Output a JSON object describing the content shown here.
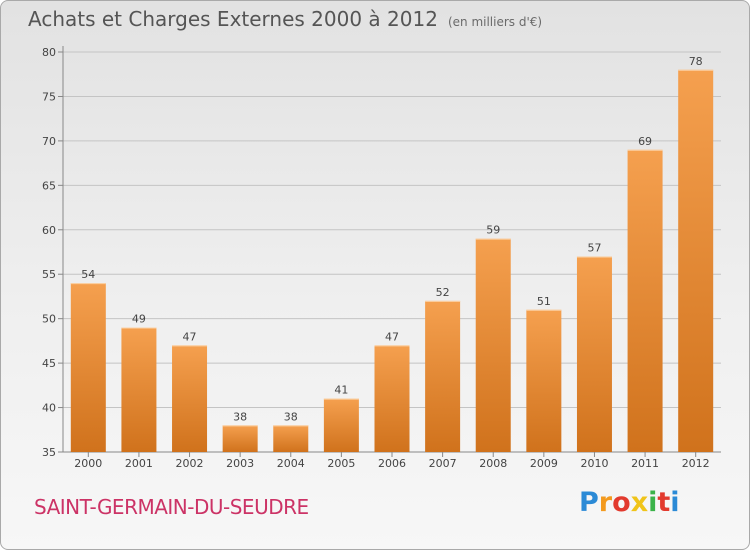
{
  "title": "Achats et Charges Externes 2000 à 2012",
  "unit": "(en milliers d'€)",
  "location": "SAINT-GERMAIN-DU-SEUDRE",
  "logo": {
    "text": "Proxiti",
    "colors": [
      "#2b8ad6",
      "#f39a1e",
      "#e23a2e",
      "#f0c419",
      "#3bb34a",
      "#e23a2e",
      "#2b8ad6"
    ]
  },
  "colors": {
    "bar_light": "#f5a04f",
    "bar_dark": "#d0721c",
    "location": "#cc3366"
  },
  "chart_data": {
    "type": "bar",
    "categories": [
      "2000",
      "2001",
      "2002",
      "2003",
      "2004",
      "2005",
      "2006",
      "2007",
      "2008",
      "2009",
      "2010",
      "2011",
      "2012"
    ],
    "values": [
      54,
      49,
      47,
      38,
      38,
      41,
      47,
      52,
      59,
      51,
      57,
      69,
      78
    ],
    "data_labels": [
      "54",
      "49",
      "47",
      "38",
      "38",
      "41",
      "47",
      "52",
      "59",
      "51",
      "57",
      "69",
      "78"
    ],
    "yticks": [
      "35",
      "40",
      "45",
      "50",
      "55",
      "60",
      "65",
      "70",
      "75",
      "80"
    ],
    "ylim": [
      35,
      80
    ],
    "grid": true
  }
}
